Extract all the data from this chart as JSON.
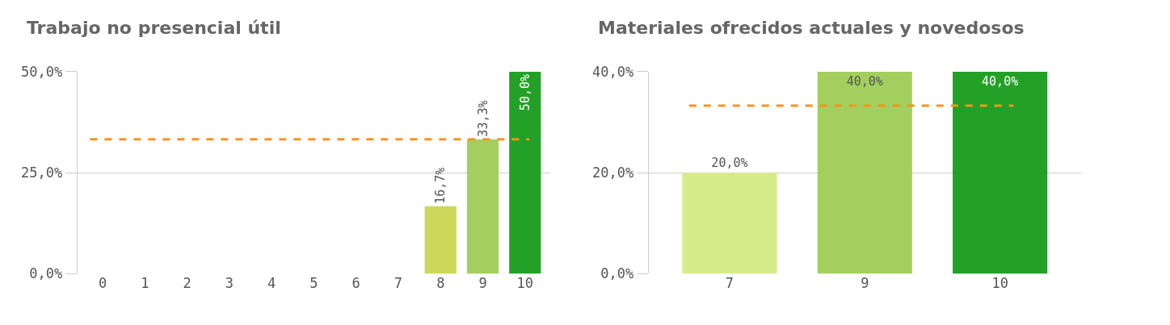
{
  "chart_data": [
    {
      "type": "bar",
      "title": "Trabajo no presencial útil",
      "categories": [
        "0",
        "1",
        "2",
        "3",
        "4",
        "5",
        "6",
        "7",
        "8",
        "9",
        "10"
      ],
      "values": [
        0,
        0,
        0,
        0,
        0,
        0,
        0,
        0,
        16.7,
        33.3,
        50.0
      ],
      "colors": [
        "#cdd75a",
        "#cdd75a",
        "#cdd75a",
        "#cdd75a",
        "#cdd75a",
        "#cdd75a",
        "#cdd75a",
        "#cdd75a",
        "#cdd75a",
        "#a3cf5f",
        "#23a127"
      ],
      "value_labels": [
        null,
        null,
        null,
        null,
        null,
        null,
        null,
        null,
        "16,7%",
        "33,3%",
        "50,0%"
      ],
      "ylim": [
        0,
        50
      ],
      "yticks": [
        {
          "value": 0,
          "label": "0,0%"
        },
        {
          "value": 25,
          "label": "25,0%"
        },
        {
          "value": 50,
          "label": "50,0%"
        }
      ],
      "grid": "y",
      "ref_lines": [
        {
          "axis": "y",
          "value": 33.3,
          "color": "#f7941d",
          "line_style": "dashed"
        }
      ]
    },
    {
      "type": "bar",
      "title": "Materiales ofrecidos actuales y novedosos",
      "categories": [
        "7",
        "9",
        "10"
      ],
      "values": [
        20.0,
        40.0,
        40.0
      ],
      "colors": [
        "#d6ec8a",
        "#a3cf5f",
        "#23a127"
      ],
      "value_labels": [
        "20,0%",
        "40,0%",
        "40,0%"
      ],
      "ylim": [
        0,
        40
      ],
      "yticks": [
        {
          "value": 0,
          "label": "0,0%"
        },
        {
          "value": 20,
          "label": "20,0%"
        },
        {
          "value": 40,
          "label": "40,0%"
        }
      ],
      "grid": "y",
      "ref_lines": [
        {
          "axis": "y",
          "value": 33.3,
          "color": "#f7941d",
          "line_style": "dashed"
        }
      ]
    }
  ]
}
